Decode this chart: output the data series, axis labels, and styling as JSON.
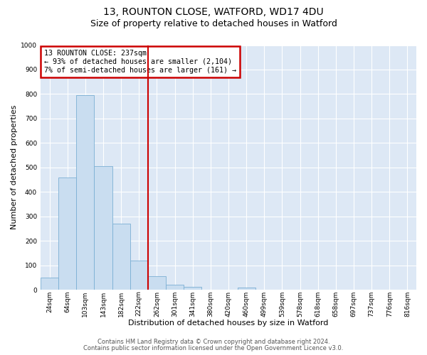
{
  "title1": "13, ROUNTON CLOSE, WATFORD, WD17 4DU",
  "title2": "Size of property relative to detached houses in Watford",
  "xlabel": "Distribution of detached houses by size in Watford",
  "ylabel": "Number of detached properties",
  "bar_labels": [
    "24sqm",
    "64sqm",
    "103sqm",
    "143sqm",
    "182sqm",
    "222sqm",
    "262sqm",
    "301sqm",
    "341sqm",
    "380sqm",
    "420sqm",
    "460sqm",
    "499sqm",
    "539sqm",
    "578sqm",
    "618sqm",
    "658sqm",
    "697sqm",
    "737sqm",
    "776sqm",
    "816sqm"
  ],
  "bar_values": [
    50,
    460,
    795,
    505,
    270,
    120,
    55,
    20,
    12,
    0,
    0,
    8,
    0,
    0,
    0,
    0,
    0,
    0,
    0,
    0,
    0
  ],
  "bar_color": "#c9ddf0",
  "bar_edge_color": "#7bafd4",
  "vline_x_index": 5.5,
  "vline_color": "#cc0000",
  "annotation_line1": "13 ROUNTON CLOSE: 237sqm",
  "annotation_line2": "← 93% of detached houses are smaller (2,104)",
  "annotation_line3": "7% of semi-detached houses are larger (161) →",
  "annotation_box_color": "#cc0000",
  "ylim": [
    0,
    1000
  ],
  "yticks": [
    0,
    100,
    200,
    300,
    400,
    500,
    600,
    700,
    800,
    900,
    1000
  ],
  "footer1": "Contains HM Land Registry data © Crown copyright and database right 2024.",
  "footer2": "Contains public sector information licensed under the Open Government Licence v3.0.",
  "fig_bg_color": "#ffffff",
  "plot_bg_color": "#dde8f5",
  "grid_color": "#ffffff",
  "title_fontsize": 10,
  "subtitle_fontsize": 9,
  "label_fontsize": 8,
  "tick_fontsize": 6.5,
  "footer_fontsize": 6
}
